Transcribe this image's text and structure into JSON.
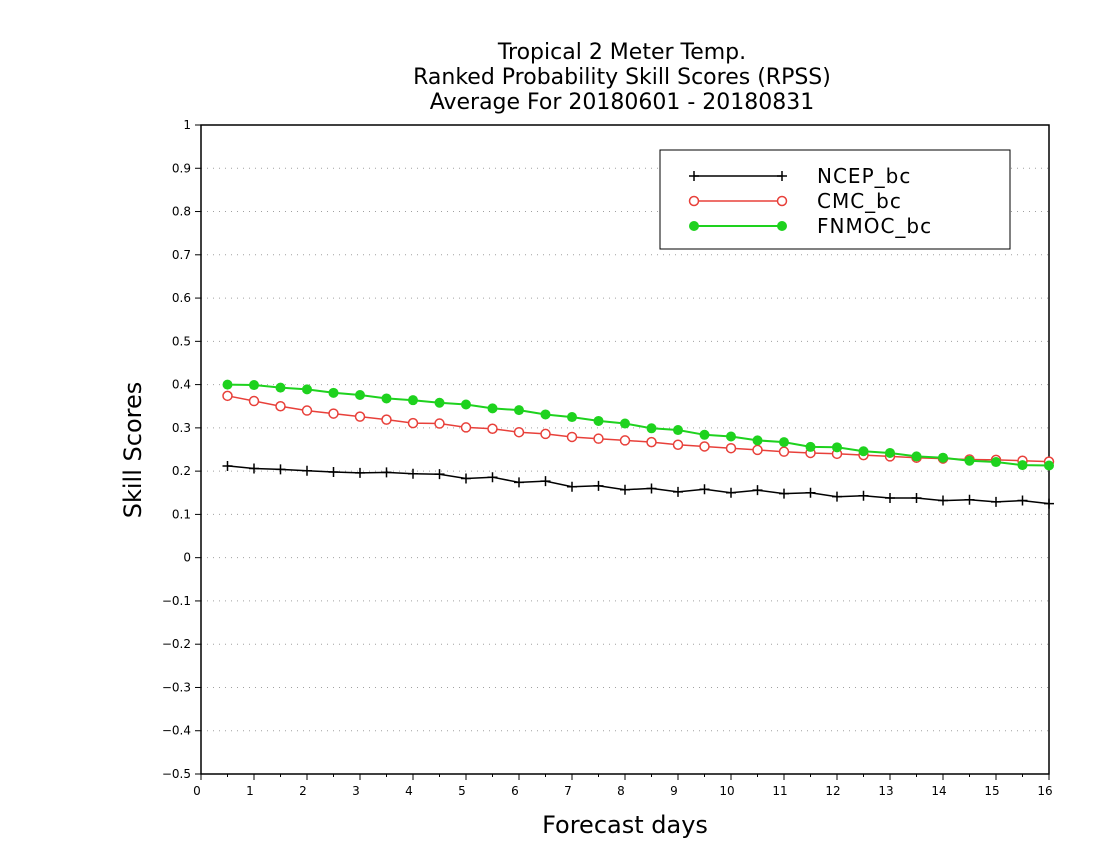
{
  "chart_data": {
    "type": "line",
    "title_lines": [
      "Tropical 2 Meter Temp.",
      "Ranked Probability Skill Scores (RPSS)",
      "Average For 20180601 - 20180831"
    ],
    "xlabel": "Forecast days",
    "ylabel": "Skill Scores",
    "xlim": [
      0,
      16
    ],
    "ylim": [
      -0.5,
      1
    ],
    "x_ticks": [
      "0",
      "1",
      "2",
      "3",
      "4",
      "5",
      "6",
      "7",
      "8",
      "9",
      "10",
      "11",
      "12",
      "13",
      "14",
      "15",
      "16"
    ],
    "y_ticks": [
      "−0.5",
      "−0.4",
      "−0.3",
      "−0.2",
      "−0.1",
      "0",
      "0.1",
      "0.2",
      "0.3",
      "0.4",
      "0.5",
      "0.6",
      "0.7",
      "0.8",
      "0.9",
      "1"
    ],
    "grid": "horizontal dotted",
    "legend_position": "top-right",
    "x": [
      0.5,
      1,
      1.5,
      2,
      2.5,
      3,
      3.5,
      4,
      4.5,
      5,
      5.5,
      6,
      6.5,
      7,
      7.5,
      8,
      8.5,
      9,
      9.5,
      10,
      10.5,
      11,
      11.5,
      12,
      12.5,
      13,
      13.5,
      14,
      14.5,
      15,
      15.5,
      16
    ],
    "series": [
      {
        "name": "NCEP_bc",
        "color": "#000000",
        "marker": "plus",
        "values": [
          0.212,
          0.206,
          0.204,
          0.201,
          0.198,
          0.196,
          0.197,
          0.194,
          0.193,
          0.183,
          0.186,
          0.174,
          0.177,
          0.164,
          0.166,
          0.157,
          0.16,
          0.152,
          0.158,
          0.15,
          0.156,
          0.148,
          0.15,
          0.141,
          0.143,
          0.138,
          0.138,
          0.132,
          0.134,
          0.129,
          0.132,
          0.125
        ]
      },
      {
        "name": "CMC_bc",
        "color": "#e8403a",
        "marker": "open-circle",
        "values": [
          0.374,
          0.362,
          0.35,
          0.34,
          0.333,
          0.326,
          0.319,
          0.311,
          0.31,
          0.301,
          0.298,
          0.29,
          0.286,
          0.279,
          0.275,
          0.271,
          0.267,
          0.261,
          0.257,
          0.253,
          0.249,
          0.245,
          0.242,
          0.24,
          0.237,
          0.234,
          0.231,
          0.229,
          0.227,
          0.226,
          0.224,
          0.222
        ]
      },
      {
        "name": "FNMOC_bc",
        "color": "#1ed21e",
        "marker": "filled-circle",
        "values": [
          0.4,
          0.399,
          0.393,
          0.389,
          0.381,
          0.376,
          0.368,
          0.364,
          0.358,
          0.354,
          0.345,
          0.341,
          0.331,
          0.325,
          0.316,
          0.31,
          0.299,
          0.295,
          0.284,
          0.28,
          0.271,
          0.267,
          0.256,
          0.255,
          0.246,
          0.242,
          0.234,
          0.231,
          0.224,
          0.221,
          0.214,
          0.213
        ]
      }
    ]
  }
}
